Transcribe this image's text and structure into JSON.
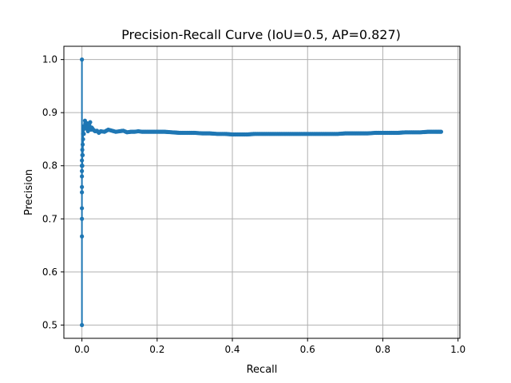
{
  "chart_data": {
    "type": "line",
    "title": "Precision-Recall Curve (IoU=0.5, AP=0.827)",
    "xlabel": "Recall",
    "ylabel": "Precision",
    "xlim": [
      -0.048,
      1.005
    ],
    "ylim": [
      0.475,
      1.025
    ],
    "xticks": [
      0.0,
      0.2,
      0.4,
      0.6,
      0.8,
      1.0
    ],
    "xtick_labels": [
      "0.0",
      "0.2",
      "0.4",
      "0.6",
      "0.8",
      "1.0"
    ],
    "yticks": [
      0.5,
      0.6,
      0.7,
      0.8,
      0.9,
      1.0
    ],
    "ytick_labels": [
      "0.5",
      "0.6",
      "0.7",
      "0.8",
      "0.9",
      "1.0"
    ],
    "grid": true,
    "marker": "circle",
    "color": "#1f77b4",
    "series": [
      {
        "x": [
          0.0,
          0.0,
          0.0,
          0.0,
          0.0,
          0.0,
          0.0,
          0.0,
          0.0,
          0.0,
          0.0,
          0.0,
          0.001,
          0.001,
          0.001,
          0.002,
          0.002,
          0.003,
          0.003,
          0.004,
          0.005,
          0.006,
          0.007,
          0.008,
          0.009,
          0.01,
          0.012,
          0.014,
          0.016,
          0.018,
          0.02,
          0.022,
          0.024,
          0.026,
          0.028,
          0.03,
          0.035,
          0.04,
          0.045,
          0.05,
          0.06,
          0.07,
          0.08,
          0.09,
          0.1,
          0.11,
          0.12,
          0.13,
          0.14,
          0.15,
          0.16,
          0.18,
          0.2,
          0.22,
          0.24,
          0.26,
          0.28,
          0.3,
          0.32,
          0.34,
          0.36,
          0.38,
          0.4,
          0.42,
          0.44,
          0.46,
          0.48,
          0.5,
          0.52,
          0.54,
          0.56,
          0.58,
          0.6,
          0.62,
          0.64,
          0.66,
          0.68,
          0.7,
          0.72,
          0.74,
          0.76,
          0.78,
          0.8,
          0.82,
          0.84,
          0.86,
          0.88,
          0.9,
          0.92,
          0.94,
          0.955
        ],
        "y": [
          1.0,
          0.5,
          0.667,
          0.75,
          0.8,
          0.7,
          0.72,
          0.76,
          0.78,
          0.79,
          0.8,
          0.81,
          0.82,
          0.8,
          0.83,
          0.84,
          0.82,
          0.85,
          0.86,
          0.87,
          0.86,
          0.875,
          0.87,
          0.885,
          0.88,
          0.875,
          0.87,
          0.88,
          0.865,
          0.875,
          0.87,
          0.882,
          0.868,
          0.872,
          0.87,
          0.868,
          0.865,
          0.866,
          0.862,
          0.865,
          0.864,
          0.868,
          0.866,
          0.864,
          0.865,
          0.866,
          0.863,
          0.864,
          0.864,
          0.865,
          0.864,
          0.864,
          0.864,
          0.864,
          0.863,
          0.862,
          0.862,
          0.862,
          0.861,
          0.861,
          0.86,
          0.86,
          0.859,
          0.859,
          0.859,
          0.86,
          0.86,
          0.86,
          0.86,
          0.86,
          0.86,
          0.86,
          0.86,
          0.86,
          0.86,
          0.86,
          0.86,
          0.861,
          0.861,
          0.861,
          0.861,
          0.862,
          0.862,
          0.862,
          0.862,
          0.863,
          0.863,
          0.863,
          0.864,
          0.864,
          0.864
        ]
      }
    ]
  }
}
